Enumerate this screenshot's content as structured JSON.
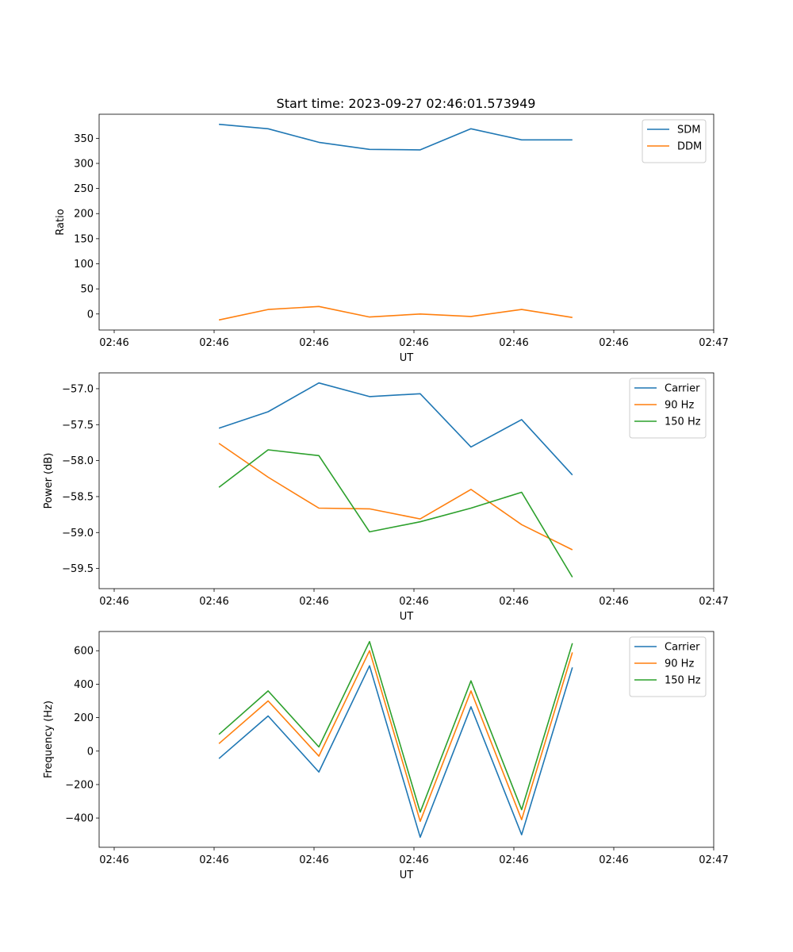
{
  "title": "Start time: 2023-09-27 02:46:01.573949",
  "colors": {
    "blue": "#1f77b4",
    "orange": "#ff7f0e",
    "green": "#2ca02c"
  },
  "chart_data": [
    {
      "type": "line",
      "xlabel": "UT",
      "ylabel": "Ratio",
      "x_tick_labels": [
        "02:46",
        "02:46",
        "02:46",
        "02:46",
        "02:46",
        "02:46",
        "02:47"
      ],
      "yticks": [
        0,
        50,
        100,
        150,
        200,
        250,
        300,
        350
      ],
      "ylim": [
        -32,
        398
      ],
      "x": [
        0.78,
        1.1,
        1.43,
        1.76,
        2.09,
        2.42,
        2.75,
        3.08
      ],
      "xlim": [
        0,
        4
      ],
      "legend_position": "top-right",
      "series": [
        {
          "name": "SDM",
          "color": "blue",
          "values": [
            378,
            369,
            342,
            328,
            327,
            369,
            347,
            347
          ]
        },
        {
          "name": "DDM",
          "color": "orange",
          "values": [
            -12,
            9,
            15,
            -6,
            0,
            -5,
            9,
            -7
          ]
        }
      ]
    },
    {
      "type": "line",
      "xlabel": "UT",
      "ylabel": "Power (dB)",
      "x_tick_labels": [
        "02:46",
        "02:46",
        "02:46",
        "02:46",
        "02:46",
        "02:46",
        "02:47"
      ],
      "yticks": [
        -57.0,
        -57.5,
        -58.0,
        -58.5,
        -59.0,
        -59.5
      ],
      "ytick_labels": [
        "−57.0",
        "−57.5",
        "−58.0",
        "−58.5",
        "−59.0",
        "−59.5"
      ],
      "ylim": [
        -59.78,
        -56.78
      ],
      "x": [
        0.78,
        1.1,
        1.43,
        1.76,
        2.09,
        2.42,
        2.75,
        3.08
      ],
      "xlim": [
        0,
        4
      ],
      "legend_position": "top-right",
      "series": [
        {
          "name": "Carrier",
          "color": "blue",
          "values": [
            -57.55,
            -57.32,
            -56.92,
            -57.11,
            -57.07,
            -57.81,
            -57.43,
            -58.2
          ]
        },
        {
          "name": "90 Hz",
          "color": "orange",
          "values": [
            -57.76,
            -58.23,
            -58.66,
            -58.67,
            -58.81,
            -58.4,
            -58.89,
            -59.24
          ]
        },
        {
          "name": "150 Hz",
          "color": "green",
          "values": [
            -58.37,
            -57.85,
            -57.93,
            -58.99,
            -58.85,
            -58.66,
            -58.44,
            -59.62
          ]
        }
      ]
    },
    {
      "type": "line",
      "xlabel": "UT",
      "ylabel": "Frequency (Hz)",
      "x_tick_labels": [
        "02:46",
        "02:46",
        "02:46",
        "02:46",
        "02:46",
        "02:46",
        "02:47"
      ],
      "yticks": [
        600,
        400,
        200,
        0,
        -200,
        -400
      ],
      "ytick_labels": [
        "600",
        "400",
        "200",
        "0",
        "−200",
        "−400"
      ],
      "ylim": [
        -575,
        715
      ],
      "x": [
        0.78,
        1.1,
        1.43,
        1.76,
        2.09,
        2.42,
        2.75,
        3.08
      ],
      "xlim": [
        0,
        4
      ],
      "legend_position": "top-right",
      "series": [
        {
          "name": "Carrier",
          "color": "blue",
          "values": [
            -45,
            210,
            -125,
            510,
            -515,
            265,
            -500,
            500
          ]
        },
        {
          "name": "90 Hz",
          "color": "orange",
          "values": [
            45,
            300,
            -30,
            600,
            -420,
            360,
            -410,
            590
          ]
        },
        {
          "name": "150 Hz",
          "color": "green",
          "values": [
            100,
            360,
            25,
            655,
            -365,
            420,
            -350,
            645
          ]
        }
      ]
    }
  ]
}
